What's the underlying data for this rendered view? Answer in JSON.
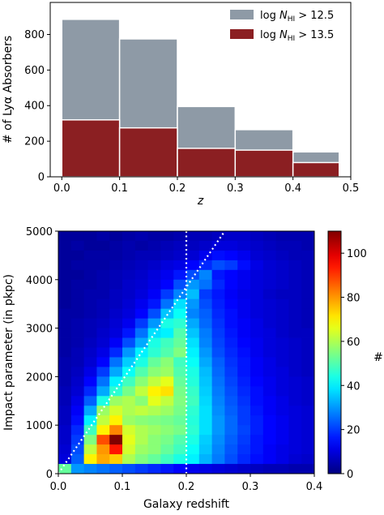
{
  "chart_data": [
    {
      "type": "bar",
      "xlabel": "z",
      "ylabel": "# of Lyα Absorbers",
      "xlim": [
        -0.02,
        0.5
      ],
      "ylim": [
        0,
        980
      ],
      "x_ticks": [
        "0.0",
        "0.1",
        "0.2",
        "0.3",
        "0.4",
        "0.5"
      ],
      "x_tick_values": [
        0.0,
        0.1,
        0.2,
        0.3,
        0.4,
        0.5
      ],
      "y_ticks": [
        "0",
        "200",
        "400",
        "600",
        "800"
      ],
      "y_tick_values": [
        0,
        200,
        400,
        600,
        800
      ],
      "bin_edges": [
        0.0,
        0.1,
        0.2,
        0.3,
        0.4,
        0.48
      ],
      "legend_position": "top-right",
      "series": [
        {
          "name": "log N_HI > 12.5",
          "name_main": "log ",
          "name_sym": "N",
          "name_sub": "HI",
          "name_rest": " > 12.5",
          "color": "#8e9aa6",
          "values": [
            885,
            775,
            395,
            265,
            140
          ]
        },
        {
          "name": "log N_HI > 13.5",
          "name_main": "log ",
          "name_sym": "N",
          "name_sub": "HI",
          "name_rest": " > 13.5",
          "color": "#8b1f22",
          "values": [
            320,
            275,
            160,
            150,
            80
          ]
        }
      ]
    },
    {
      "type": "heatmap",
      "xlabel": "Galaxy redshift",
      "ylabel": "Impact parameter (in pkpc)",
      "xlim": [
        0.0,
        0.4
      ],
      "ylim": [
        0,
        5000
      ],
      "x_ticks": [
        "0.0",
        "0.1",
        "0.2",
        "0.3",
        "0.4"
      ],
      "x_tick_values": [
        0.0,
        0.1,
        0.2,
        0.3,
        0.4
      ],
      "y_ticks": [
        "0",
        "1000",
        "2000",
        "3000",
        "4000",
        "5000"
      ],
      "y_tick_values": [
        0,
        1000,
        2000,
        3000,
        4000,
        5000
      ],
      "colorbar_label": "#",
      "colorbar_ticks": [
        "0",
        "20",
        "40",
        "60",
        "80",
        "100"
      ],
      "colorbar_tick_values": [
        0,
        20,
        40,
        60,
        80,
        100
      ],
      "colorbar_range": [
        0,
        110
      ],
      "colormap": "jet",
      "grid_shape": {
        "x_bins": 20,
        "y_bins": 25,
        "x_bin_width": 0.02,
        "y_bin_width": 200
      },
      "vertical_reference_line_x": 0.2,
      "diagonal_reference_line": [
        [
          0.0,
          0
        ],
        [
          0.26,
          5000
        ]
      ],
      "counts_rows_top_to_bottom": [
        [
          3,
          3,
          3,
          4,
          3,
          4,
          5,
          4,
          4,
          5,
          6,
          6,
          7,
          8,
          8,
          7,
          6,
          5,
          5,
          5
        ],
        [
          3,
          4,
          3,
          3,
          4,
          5,
          4,
          5,
          6,
          7,
          7,
          8,
          10,
          10,
          9,
          8,
          7,
          6,
          6,
          5
        ],
        [
          3,
          3,
          4,
          4,
          4,
          5,
          6,
          6,
          7,
          8,
          9,
          12,
          15,
          14,
          12,
          9,
          8,
          7,
          6,
          6
        ],
        [
          3,
          4,
          4,
          4,
          5,
          6,
          7,
          8,
          10,
          11,
          14,
          18,
          22,
          20,
          15,
          11,
          9,
          8,
          7,
          6
        ],
        [
          3,
          3,
          4,
          5,
          6,
          7,
          8,
          10,
          12,
          16,
          22,
          28,
          16,
          14,
          12,
          10,
          9,
          8,
          7,
          6
        ],
        [
          3,
          4,
          4,
          5,
          6,
          8,
          9,
          11,
          14,
          22,
          30,
          26,
          18,
          14,
          12,
          10,
          9,
          8,
          7,
          6
        ],
        [
          3,
          4,
          5,
          5,
          7,
          8,
          10,
          13,
          20,
          28,
          34,
          20,
          16,
          13,
          11,
          10,
          8,
          7,
          7,
          6
        ],
        [
          3,
          4,
          5,
          6,
          7,
          9,
          12,
          16,
          26,
          38,
          30,
          22,
          17,
          14,
          12,
          10,
          9,
          8,
          7,
          6
        ],
        [
          4,
          4,
          5,
          6,
          8,
          10,
          14,
          22,
          35,
          42,
          28,
          24,
          18,
          15,
          12,
          10,
          9,
          8,
          7,
          6
        ],
        [
          4,
          5,
          6,
          7,
          9,
          12,
          20,
          30,
          44,
          46,
          32,
          25,
          19,
          15,
          13,
          11,
          9,
          8,
          7,
          6
        ],
        [
          4,
          5,
          6,
          8,
          10,
          16,
          26,
          38,
          40,
          50,
          35,
          27,
          20,
          16,
          13,
          11,
          10,
          8,
          7,
          7
        ],
        [
          4,
          5,
          7,
          9,
          13,
          22,
          32,
          44,
          48,
          52,
          38,
          28,
          21,
          17,
          14,
          12,
          10,
          9,
          8,
          7
        ],
        [
          4,
          6,
          8,
          11,
          18,
          30,
          40,
          46,
          50,
          55,
          40,
          30,
          22,
          18,
          15,
          12,
          10,
          9,
          8,
          7
        ],
        [
          5,
          6,
          9,
          14,
          26,
          36,
          44,
          52,
          56,
          48,
          42,
          32,
          24,
          19,
          16,
          13,
          11,
          9,
          8,
          7
        ],
        [
          5,
          7,
          11,
          20,
          32,
          42,
          50,
          56,
          58,
          50,
          44,
          34,
          25,
          20,
          16,
          13,
          11,
          10,
          8,
          7
        ],
        [
          5,
          8,
          14,
          26,
          40,
          48,
          56,
          62,
          66,
          52,
          45,
          35,
          26,
          21,
          17,
          14,
          12,
          10,
          9,
          8
        ],
        [
          6,
          9,
          18,
          32,
          46,
          54,
          62,
          70,
          72,
          54,
          47,
          36,
          27,
          22,
          18,
          15,
          12,
          10,
          9,
          8
        ],
        [
          6,
          11,
          24,
          44,
          58,
          60,
          56,
          66,
          62,
          55,
          48,
          37,
          28,
          23,
          19,
          15,
          13,
          11,
          9,
          8
        ],
        [
          7,
          13,
          32,
          58,
          64,
          60,
          62,
          60,
          58,
          54,
          46,
          38,
          29,
          24,
          20,
          16,
          13,
          11,
          10,
          9
        ],
        [
          7,
          15,
          40,
          62,
          70,
          58,
          56,
          55,
          54,
          52,
          45,
          38,
          30,
          25,
          20,
          17,
          14,
          12,
          10,
          9
        ],
        [
          8,
          18,
          48,
          70,
          82,
          64,
          60,
          58,
          56,
          54,
          46,
          38,
          30,
          25,
          21,
          17,
          14,
          12,
          10,
          9
        ],
        [
          8,
          20,
          55,
          88,
          110,
          66,
          60,
          56,
          54,
          50,
          44,
          36,
          29,
          24,
          20,
          16,
          14,
          12,
          10,
          9
        ],
        [
          9,
          22,
          62,
          80,
          94,
          64,
          58,
          56,
          52,
          48,
          42,
          35,
          28,
          23,
          19,
          16,
          13,
          11,
          10,
          9
        ],
        [
          10,
          24,
          70,
          78,
          74,
          60,
          55,
          52,
          48,
          44,
          40,
          33,
          27,
          22,
          18,
          15,
          13,
          11,
          9,
          8
        ],
        [
          52,
          30,
          28,
          26,
          24,
          22,
          20,
          18,
          16,
          14,
          12,
          11,
          10,
          9,
          8,
          7,
          6,
          6,
          5,
          5
        ]
      ]
    }
  ]
}
